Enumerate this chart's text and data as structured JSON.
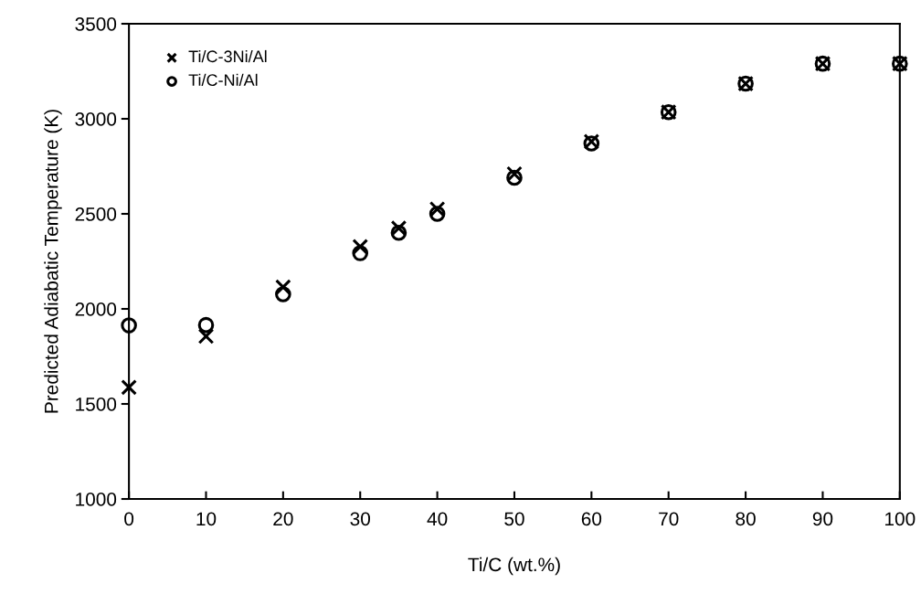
{
  "chart_data": {
    "type": "scatter",
    "xlabel": "Ti/C (wt.%)",
    "ylabel": "Predicted Adiabatic Temperature (K)",
    "x": [
      0,
      10,
      20,
      30,
      35,
      40,
      50,
      60,
      70,
      80,
      90,
      100
    ],
    "series": [
      {
        "name": "Ti/C-3Ni/Al",
        "color": "#000000",
        "marker": "cross",
        "values": [
          1587,
          1856,
          2115,
          2327,
          2425,
          2525,
          2710,
          2880,
          3035,
          3185,
          3290,
          3290
        ]
      },
      {
        "name": "Ti/C-Ni/Al",
        "color": "#000000",
        "marker": "circle",
        "values": [
          1913,
          1915,
          2077,
          2293,
          2400,
          2500,
          2690,
          2870,
          3035,
          3185,
          3290,
          3290
        ]
      }
    ],
    "xlim": [
      0,
      100
    ],
    "xticks": [
      0,
      10,
      20,
      30,
      40,
      50,
      60,
      70,
      80,
      90,
      100
    ],
    "ylim": [
      1000,
      3500
    ],
    "yticks": [
      1000,
      1500,
      2000,
      2500,
      3000,
      3500
    ],
    "grid": false,
    "legend": "top left"
  }
}
